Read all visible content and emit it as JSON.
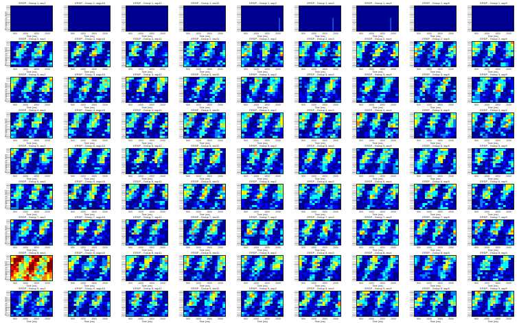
{
  "chart_data": {
    "type": "heatmap",
    "layout": {
      "rows": 9,
      "cols": 9
    },
    "xlabel": "Time (ms)",
    "ylabel": "Frequency (Hz)",
    "xticklabels": [
      "500",
      "1000",
      "1500",
      "2000"
    ],
    "colormap": [
      "#00008f",
      "#0000ff",
      "#0080ff",
      "#00ffff",
      "#80ff80",
      "#ffff00",
      "#ff8000",
      "#ff0000",
      "#800000"
    ],
    "panels": [
      {
        "title": "ERSP - Group 1, ssv1"
      },
      {
        "title": "ERSP - Group 1, ssgc16"
      },
      {
        "title": "ERSP - Group 1, ssp11"
      },
      {
        "title": "ERSP - Group 1, ssv11"
      },
      {
        "title": "ERSP - Group 1, ssp2"
      },
      {
        "title": "ERSP - Group 1, ssv3"
      },
      {
        "title": "ERSP - Group 1, ssv4"
      },
      {
        "title": "ERSP - Group 1, ssp5"
      },
      {
        "title": "ERSP - Group 1, ssp9"
      },
      {
        "title": "ERSP - Group 2, ssv1"
      },
      {
        "title": "ERSP - Group 2, ssgc16"
      },
      {
        "title": "ERSP - Group 2, ssp11"
      },
      {
        "title": "ERSP - Group 2, ssv11"
      },
      {
        "title": "ERSP - Group 2, ssp2"
      },
      {
        "title": "ERSP - Group 2, ssv3"
      },
      {
        "title": "ERSP - Group 2, ssv4"
      },
      {
        "title": "ERSP - Group 2, ssp5"
      },
      {
        "title": "ERSP - Group 2, ssp9"
      },
      {
        "title": "ERSP - Group 3, ssv1"
      },
      {
        "title": "ERSP - Group 3, ssgc16"
      },
      {
        "title": "ERSP - Group 3, ssp11"
      },
      {
        "title": "ERSP - Group 3, ssv11"
      },
      {
        "title": "ERSP - Group 3, ssp2"
      },
      {
        "title": "ERSP - Group 3, ssv3"
      },
      {
        "title": "ERSP - Group 3, ssv4"
      },
      {
        "title": "ERSP - Group 3, ssp5"
      },
      {
        "title": "ERSP - Group 3, ssp9"
      },
      {
        "title": "ERSP - Group 4, ssv1"
      },
      {
        "title": "ERSP - Group 4, ssgc16"
      },
      {
        "title": "ERSP - Group 4, ssp11"
      },
      {
        "title": "ERSP - Group 4, ssv11"
      },
      {
        "title": "ERSP - Group 4, ssp2"
      },
      {
        "title": "ERSP - Group 4, ssv3"
      },
      {
        "title": "ERSP - Group 4, ssv4"
      },
      {
        "title": "ERSP - Group 4, ssp5"
      },
      {
        "title": "ERSP - Group 4, ssp9"
      },
      {
        "title": "ERSP - Group 5, ssv1"
      },
      {
        "title": "ERSP - Group 5, ssgc16"
      },
      {
        "title": "ERSP - Group 5, ssp11"
      },
      {
        "title": "ERSP - Group 5, ssv11"
      },
      {
        "title": "ERSP - Group 5, ssp2"
      },
      {
        "title": "ERSP - Group 5, ssv3"
      },
      {
        "title": "ERSP - Group 5, ssv4"
      },
      {
        "title": "ERSP - Group 5, ssp5"
      },
      {
        "title": "ERSP - Group 5, ssp9"
      },
      {
        "title": "ERSP - Group 6, ssv1"
      },
      {
        "title": "ERSP - Group 6, ssgc16"
      },
      {
        "title": "ERSP - Group 6, ssp11"
      },
      {
        "title": "ERSP - Group 6, ssv11"
      },
      {
        "title": "ERSP - Group 6, ssp2"
      },
      {
        "title": "ERSP - Group 6, ssv3"
      },
      {
        "title": "ERSP - Group 6, ssv4"
      },
      {
        "title": "ERSP - Group 6, ssp5"
      },
      {
        "title": "ERSP - Group 6, ssp9"
      },
      {
        "title": "ERSP - Group 7, ssv1"
      },
      {
        "title": "ERSP - Group 7, ssgc16"
      },
      {
        "title": "ERSP - Group 7, ssp11"
      },
      {
        "title": "ERSP - Group 7, ssv11"
      },
      {
        "title": "ERSP - Group 7, ssp2"
      },
      {
        "title": "ERSP - Group 7, ssv3"
      },
      {
        "title": "ERSP - Group 7, ssv4"
      },
      {
        "title": "ERSP - Group 7, ssp5"
      },
      {
        "title": "ERSP - Group 7, ssp9"
      },
      {
        "title": "ERSP - Group 8, ssv1"
      },
      {
        "title": "ERSP - Group 8, ssgc16"
      },
      {
        "title": "ERSP - Group 8, ssp11"
      },
      {
        "title": "ERSP - Group 8, ssv11"
      },
      {
        "title": "ERSP - Group 8, ssp2"
      },
      {
        "title": "ERSP - Group 8, ssv3"
      },
      {
        "title": "ERSP - Group 8, ssv4"
      },
      {
        "title": "ERSP - Group 8, ssp5"
      },
      {
        "title": "ERSP - Group 8, ssp9"
      },
      {
        "title": "ERSP - Group 9, ssv1"
      },
      {
        "title": "ERSP - Group 9, ssgc16"
      },
      {
        "title": "ERSP - Group 9, ssp11"
      },
      {
        "title": "ERSP - Group 9, ssv11"
      },
      {
        "title": "ERSP - Group 9, ssp2"
      },
      {
        "title": "ERSP - Group 9, ssv3"
      },
      {
        "title": "ERSP - Group 9, ssv4"
      },
      {
        "title": "ERSP - Group 9, ssp5"
      },
      {
        "title": "ERSP - Group 9, ssp9"
      }
    ]
  }
}
